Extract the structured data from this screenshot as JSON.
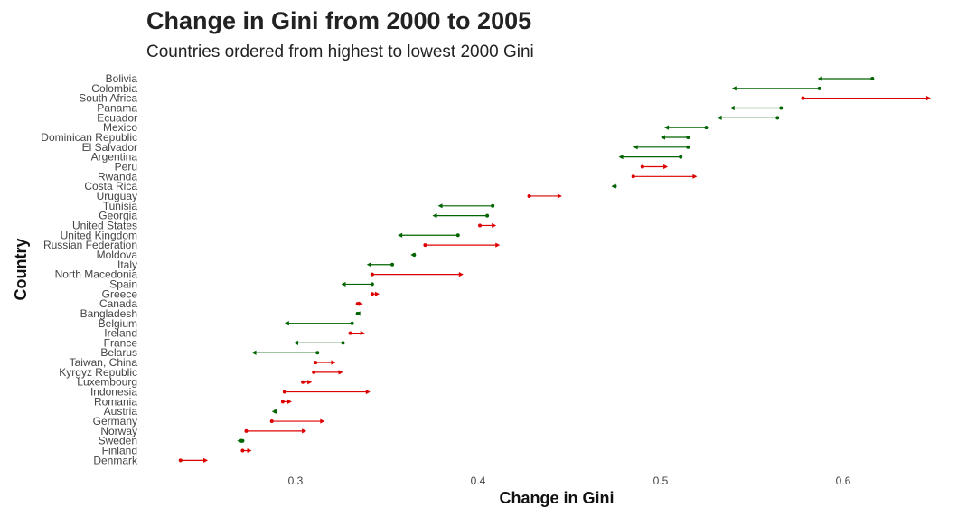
{
  "chart_data": {
    "type": "dumbbell-arrow",
    "title": "Change in Gini from 2000 to 2005",
    "subtitle": "Countries ordered from highest to lowest 2000 Gini",
    "xlabel": "Change in Gini",
    "ylabel": "Country",
    "xlim": [
      0.22,
      0.65
    ],
    "xticks": [
      0.3,
      0.4,
      0.5,
      0.6
    ],
    "grid": false,
    "colors": {
      "decrease": "#006400",
      "increase": "#dd0000"
    },
    "countries": [
      {
        "name": "Bolivia",
        "gini_2000": 0.616,
        "gini_2005": 0.586
      },
      {
        "name": "Colombia",
        "gini_2000": 0.587,
        "gini_2005": 0.539
      },
      {
        "name": "South Africa",
        "gini_2000": 0.578,
        "gini_2005": 0.648
      },
      {
        "name": "Panama",
        "gini_2000": 0.566,
        "gini_2005": 0.538
      },
      {
        "name": "Ecuador",
        "gini_2000": 0.564,
        "gini_2005": 0.531
      },
      {
        "name": "Mexico",
        "gini_2000": 0.525,
        "gini_2005": 0.502
      },
      {
        "name": "Dominican Republic",
        "gini_2000": 0.515,
        "gini_2005": 0.5
      },
      {
        "name": "El Salvador",
        "gini_2000": 0.515,
        "gini_2005": 0.485
      },
      {
        "name": "Argentina",
        "gini_2000": 0.511,
        "gini_2005": 0.477
      },
      {
        "name": "Peru",
        "gini_2000": 0.49,
        "gini_2005": 0.504
      },
      {
        "name": "Rwanda",
        "gini_2000": 0.485,
        "gini_2005": 0.52
      },
      {
        "name": "Costa Rica",
        "gini_2000": 0.475,
        "gini_2005": 0.473
      },
      {
        "name": "Uruguay",
        "gini_2000": 0.428,
        "gini_2005": 0.446
      },
      {
        "name": "Tunisia",
        "gini_2000": 0.408,
        "gini_2005": 0.378
      },
      {
        "name": "Georgia",
        "gini_2000": 0.405,
        "gini_2005": 0.375
      },
      {
        "name": "United States",
        "gini_2000": 0.401,
        "gini_2005": 0.41
      },
      {
        "name": "United Kingdom",
        "gini_2000": 0.389,
        "gini_2005": 0.356
      },
      {
        "name": "Russian Federation",
        "gini_2000": 0.371,
        "gini_2005": 0.412
      },
      {
        "name": "Moldova",
        "gini_2000": 0.365,
        "gini_2005": 0.363
      },
      {
        "name": "Italy",
        "gini_2000": 0.353,
        "gini_2005": 0.339
      },
      {
        "name": "North Macedonia",
        "gini_2000": 0.342,
        "gini_2005": 0.392
      },
      {
        "name": "Spain",
        "gini_2000": 0.342,
        "gini_2005": 0.325
      },
      {
        "name": "Greece",
        "gini_2000": 0.342,
        "gini_2005": 0.346
      },
      {
        "name": "Canada",
        "gini_2000": 0.334,
        "gini_2005": 0.337
      },
      {
        "name": "Bangladesh",
        "gini_2000": 0.334,
        "gini_2005": 0.333
      },
      {
        "name": "Belgium",
        "gini_2000": 0.331,
        "gini_2005": 0.294
      },
      {
        "name": "Ireland",
        "gini_2000": 0.33,
        "gini_2005": 0.338
      },
      {
        "name": "France",
        "gini_2000": 0.326,
        "gini_2005": 0.299
      },
      {
        "name": "Belarus",
        "gini_2000": 0.312,
        "gini_2005": 0.276
      },
      {
        "name": "Taiwan, China",
        "gini_2000": 0.311,
        "gini_2005": 0.322
      },
      {
        "name": "Kyrgyz Republic",
        "gini_2000": 0.31,
        "gini_2005": 0.326
      },
      {
        "name": "Luxembourg",
        "gini_2000": 0.304,
        "gini_2005": 0.309
      },
      {
        "name": "Indonesia",
        "gini_2000": 0.294,
        "gini_2005": 0.341
      },
      {
        "name": "Romania",
        "gini_2000": 0.293,
        "gini_2005": 0.298
      },
      {
        "name": "Austria",
        "gini_2000": 0.289,
        "gini_2005": 0.287
      },
      {
        "name": "Germany",
        "gini_2000": 0.287,
        "gini_2005": 0.316
      },
      {
        "name": "Norway",
        "gini_2000": 0.273,
        "gini_2005": 0.306
      },
      {
        "name": "Sweden",
        "gini_2000": 0.271,
        "gini_2005": 0.268
      },
      {
        "name": "Finland",
        "gini_2000": 0.271,
        "gini_2005": 0.276
      },
      {
        "name": "Denmark",
        "gini_2000": 0.237,
        "gini_2005": 0.252
      }
    ]
  }
}
